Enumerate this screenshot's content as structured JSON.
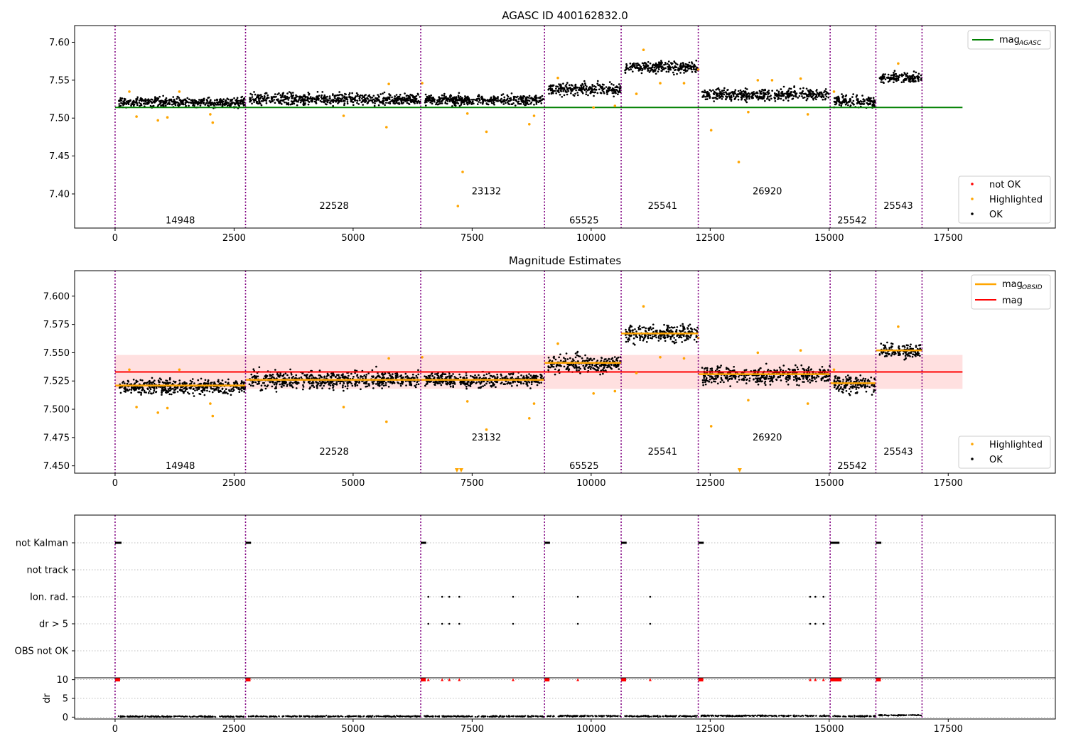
{
  "figure": {
    "obsids": [
      "14948",
      "22528",
      "23132",
      "65525",
      "25541",
      "26920",
      "25542",
      "25543"
    ],
    "obsid_label_x": [
      1370,
      4600,
      7800,
      9850,
      11500,
      13700,
      15480,
      16450
    ],
    "obsid_boundaries": [
      0,
      2740,
      6420,
      9020,
      10630,
      12250,
      15020,
      15980,
      16950
    ],
    "x_ticks": [
      0,
      2500,
      5000,
      7500,
      10000,
      12500,
      15000,
      17500
    ],
    "colors": {
      "ok": "#000000",
      "highlighted": "#ffa500",
      "not_ok": "#ff0000",
      "mag_agasc": "#008000",
      "mag_obsid": "#ffa500",
      "mag": "#ff0000",
      "mag_band": "#ffcccc",
      "boundary": "#800080"
    }
  },
  "chart_data": [
    {
      "type": "scatter",
      "title": "AGASC ID 400162832.0",
      "xlabel": "",
      "ylabel": "",
      "xlim": [
        -850,
        19750
      ],
      "ylim": [
        7.355,
        7.622
      ],
      "y_ticks": [
        7.4,
        7.45,
        7.5,
        7.55,
        7.6
      ],
      "y_tick_labels": [
        "7.40",
        "7.45",
        "7.50",
        "7.55",
        "7.60"
      ],
      "obsid_label_y": [
        7.366,
        7.385,
        7.404,
        7.366,
        7.385,
        7.404,
        7.366,
        7.385
      ],
      "segment_mean": [
        7.521,
        7.525,
        7.524,
        7.538,
        7.567,
        7.531,
        7.522,
        7.553
      ],
      "segment_spread": [
        0.0045,
        0.0055,
        0.0045,
        0.0055,
        0.0055,
        0.0055,
        0.0055,
        0.0045
      ],
      "mag_agasc": {
        "value": 7.514,
        "x_range": [
          0,
          17800
        ]
      },
      "highlighted_points": [
        [
          300,
          7.535
        ],
        [
          450,
          7.502
        ],
        [
          900,
          7.497
        ],
        [
          1100,
          7.501
        ],
        [
          1350,
          7.535
        ],
        [
          2000,
          7.505
        ],
        [
          2050,
          7.494
        ],
        [
          4800,
          7.503
        ],
        [
          5700,
          7.488
        ],
        [
          5750,
          7.545
        ],
        [
          6450,
          7.546
        ],
        [
          7200,
          7.384
        ],
        [
          7300,
          7.429
        ],
        [
          7400,
          7.506
        ],
        [
          7800,
          7.482
        ],
        [
          8700,
          7.492
        ],
        [
          8800,
          7.503
        ],
        [
          9300,
          7.553
        ],
        [
          10050,
          7.514
        ],
        [
          10500,
          7.516
        ],
        [
          10950,
          7.532
        ],
        [
          11100,
          7.59
        ],
        [
          11450,
          7.546
        ],
        [
          11950,
          7.546
        ],
        [
          12250,
          7.564
        ],
        [
          12520,
          7.484
        ],
        [
          13100,
          7.442
        ],
        [
          13300,
          7.508
        ],
        [
          13500,
          7.55
        ],
        [
          13800,
          7.55
        ],
        [
          14400,
          7.552
        ],
        [
          14550,
          7.505
        ],
        [
          15100,
          7.535
        ],
        [
          16450,
          7.572
        ]
      ],
      "legend_top": {
        "position": "top-right",
        "entries": [
          {
            "label": "mag",
            "sub": "AGASC"
          }
        ]
      },
      "legend_bottom": {
        "position": "lower-right",
        "entries": [
          "not OK",
          "Highlighted",
          "OK"
        ]
      }
    },
    {
      "type": "scatter",
      "title": "Magnitude Estimates",
      "xlabel": "",
      "ylabel": "",
      "xlim": [
        -850,
        19750
      ],
      "ylim": [
        7.4435,
        7.6225
      ],
      "y_ticks": [
        7.45,
        7.475,
        7.5,
        7.525,
        7.55,
        7.575,
        7.6
      ],
      "y_tick_labels": [
        "7.450",
        "7.475",
        "7.500",
        "7.525",
        "7.550",
        "7.575",
        "7.600"
      ],
      "obsid_label_y": [
        7.4505,
        7.463,
        7.4755,
        7.4505,
        7.463,
        7.4755,
        7.4505,
        7.463
      ],
      "segment_mean": [
        7.52,
        7.526,
        7.526,
        7.54,
        7.567,
        7.53,
        7.522,
        7.552
      ],
      "segment_spread": [
        0.0045,
        0.0055,
        0.0045,
        0.0055,
        0.0055,
        0.0055,
        0.0055,
        0.0045
      ],
      "mag_obsid": [
        7.521,
        7.526,
        7.526,
        7.541,
        7.567,
        7.531,
        7.523,
        7.552
      ],
      "mag": {
        "value": 7.533,
        "band": [
          7.518,
          7.548
        ],
        "x_range": [
          0,
          17800
        ]
      },
      "highlighted_points": [
        [
          300,
          7.535
        ],
        [
          450,
          7.502
        ],
        [
          900,
          7.497
        ],
        [
          1100,
          7.501
        ],
        [
          1350,
          7.535
        ],
        [
          2000,
          7.505
        ],
        [
          2050,
          7.494
        ],
        [
          4800,
          7.502
        ],
        [
          5700,
          7.489
        ],
        [
          5750,
          7.545
        ],
        [
          6450,
          7.546
        ],
        [
          7400,
          7.507
        ],
        [
          7800,
          7.482
        ],
        [
          8700,
          7.492
        ],
        [
          8800,
          7.505
        ],
        [
          9300,
          7.558
        ],
        [
          10050,
          7.514
        ],
        [
          10500,
          7.516
        ],
        [
          10950,
          7.532
        ],
        [
          11100,
          7.591
        ],
        [
          11450,
          7.546
        ],
        [
          11950,
          7.545
        ],
        [
          12250,
          7.563
        ],
        [
          12520,
          7.485
        ],
        [
          13300,
          7.508
        ],
        [
          13500,
          7.55
        ],
        [
          14400,
          7.552
        ],
        [
          14550,
          7.505
        ],
        [
          15100,
          7.535
        ],
        [
          16450,
          7.573
        ]
      ],
      "below_range_markers": [
        7180,
        7270,
        13120
      ],
      "legend_top": {
        "position": "top-right",
        "entries": [
          {
            "label": "mag",
            "sub": "OBSID"
          },
          {
            "label": "mag",
            "sub": ""
          }
        ]
      },
      "legend_bottom": {
        "position": "lower-right",
        "entries": [
          "Highlighted",
          "OK"
        ]
      }
    },
    {
      "type": "scatter",
      "title": "",
      "categories": [
        "not Kalman",
        "not track",
        "Ion. rad.",
        "dr > 5",
        "OBS not OK"
      ],
      "flag_points": {
        "not Kalman": [
          [
            0,
            60
          ],
          [
            2740,
            40
          ],
          [
            6420,
            40
          ],
          [
            9020,
            40
          ],
          [
            10630,
            40
          ],
          [
            12250,
            40
          ],
          [
            15020,
            120
          ],
          [
            15980,
            40
          ]
        ],
        "not track": [],
        "Ion. rad.": [
          6580,
          6870,
          7020,
          7230,
          8360,
          9720,
          11240,
          14600,
          14710,
          14880
        ],
        "dr > 5": [
          6580,
          6870,
          7020,
          7230,
          8360,
          9720,
          11240,
          14600,
          14710,
          14880
        ],
        "OBS not OK": []
      }
    },
    {
      "type": "scatter",
      "title": "",
      "xlabel": "",
      "ylabel": "dr",
      "xlim": [
        -850,
        19750
      ],
      "ylim": [
        -0.5,
        10.5
      ],
      "y_ticks": [
        0,
        5,
        10
      ],
      "y_tick_labels": [
        "0",
        "5",
        "10"
      ],
      "dr_level": [
        0.15,
        0.2,
        0.2,
        0.3,
        0.25,
        0.35,
        0.25,
        0.5
      ],
      "capped_value": 10,
      "capped_points": [
        6580,
        6870,
        7020,
        7230,
        8360,
        9720,
        11240,
        14600,
        14710,
        14880
      ]
    }
  ]
}
